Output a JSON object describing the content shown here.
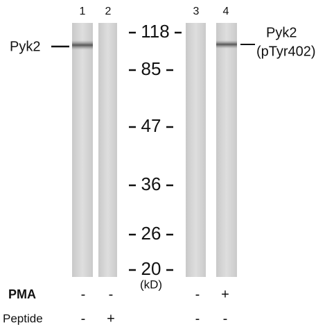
{
  "lanes": [
    {
      "number": "1",
      "pma": "-",
      "peptide": "-"
    },
    {
      "number": "2",
      "pma": "-",
      "peptide": "+"
    },
    {
      "number": "3",
      "pma": "-",
      "peptide": "-"
    },
    {
      "number": "4",
      "pma": "+",
      "peptide": "-"
    }
  ],
  "markers": [
    "118",
    "85",
    "47",
    "36",
    "26",
    "20"
  ],
  "marker_unit": "(kD)",
  "labels": {
    "left": "Pyk2",
    "right": [
      "Pyk2",
      "(pTyr402)"
    ]
  },
  "conditions": [
    "PMA",
    "Peptide"
  ]
}
